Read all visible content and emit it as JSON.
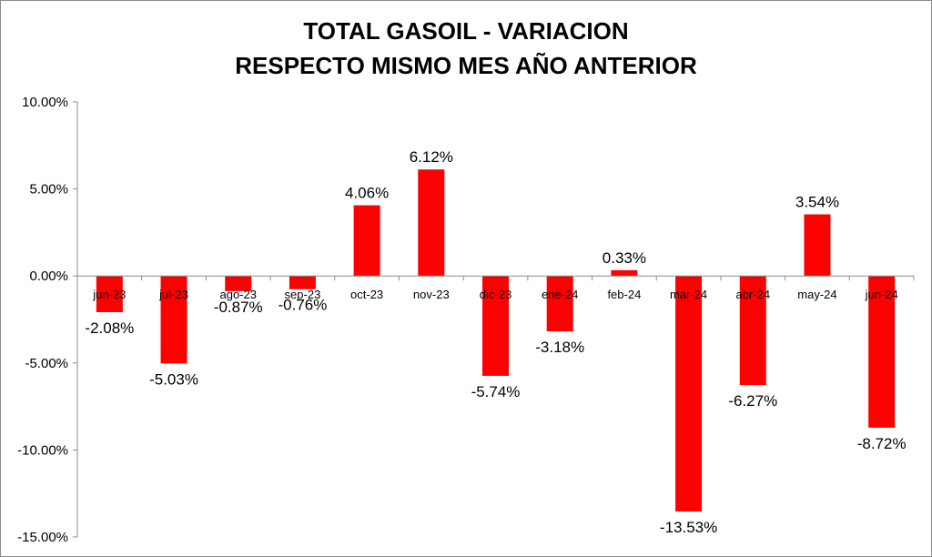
{
  "chart_data": {
    "type": "bar",
    "title_line1": "TOTAL GASOIL - VARIACION",
    "title_line2": "RESPECTO MISMO MES AÑO ANTERIOR",
    "categories": [
      "jun-23",
      "jul-23",
      "ago-23",
      "sep-23",
      "oct-23",
      "nov-23",
      "dic-23",
      "ene-24",
      "feb-24",
      "mar-24",
      "abr-24",
      "may-24",
      "jun-24"
    ],
    "values": [
      -2.08,
      -5.03,
      -0.87,
      -0.76,
      4.06,
      6.12,
      -5.74,
      -3.18,
      0.33,
      -13.53,
      -6.27,
      3.54,
      -8.72
    ],
    "data_labels": [
      "-2.08%",
      "-5.03%",
      "-0.87%",
      "-0.76%",
      "4.06%",
      "6.12%",
      "-5.74%",
      "-3.18%",
      "0.33%",
      "-13.53%",
      "-6.27%",
      "3.54%",
      "-8.72%"
    ],
    "ylim": [
      -15,
      10
    ],
    "ytick_values": [
      10,
      5,
      0,
      -5,
      -10,
      -15
    ],
    "ytick_labels": [
      "10.00%",
      "5.00%",
      "0.00%",
      "-5.00%",
      "-10.00%",
      "-15.00%"
    ],
    "bar_color": "#ff0000",
    "xlabel": "",
    "ylabel": "",
    "grid": false,
    "legend": false
  }
}
